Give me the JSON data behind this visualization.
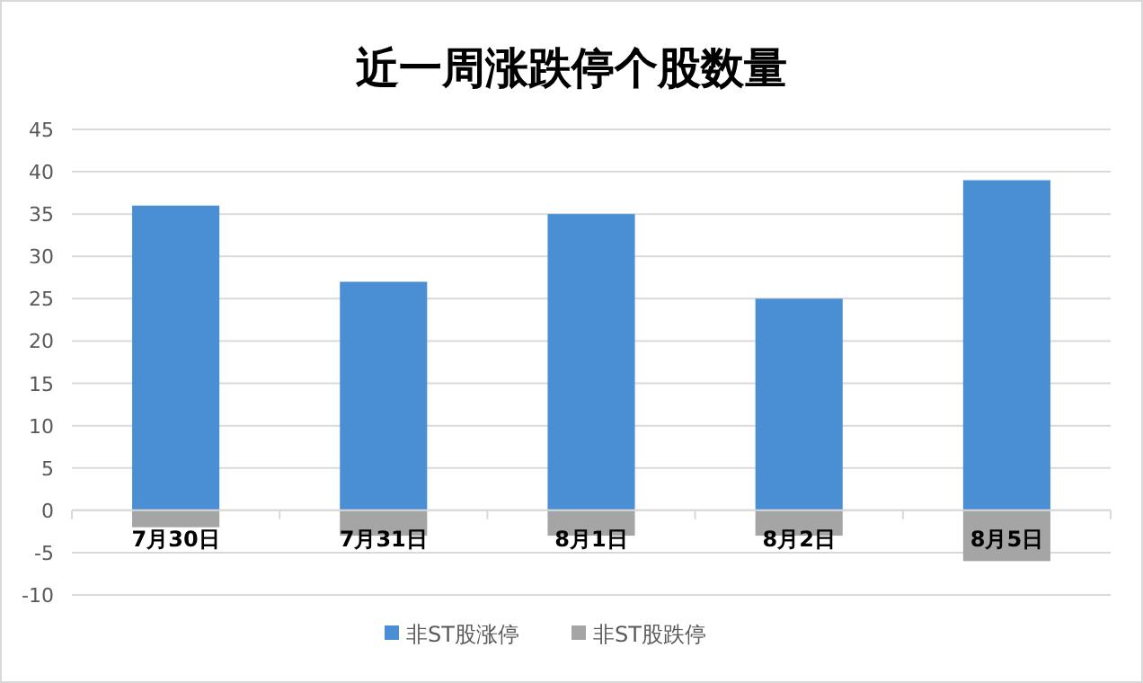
{
  "chart_data": {
    "type": "bar",
    "title": "近一周涨跌停个股数量",
    "categories": [
      "7月30日",
      "7月31日",
      "8月1日",
      "8月2日",
      "8月5日"
    ],
    "stacked": true,
    "series": [
      {
        "name": "非ST股涨停",
        "color": "#4a8fd4",
        "values": [
          36,
          27,
          35,
          25,
          39
        ]
      },
      {
        "name": "非ST股跌停",
        "color": "#a5a5a5",
        "values": [
          -2,
          -3,
          -3,
          -3,
          -6
        ]
      }
    ],
    "ylim": [
      -10,
      45
    ],
    "yticks": [
      -10,
      -5,
      0,
      5,
      10,
      15,
      20,
      25,
      30,
      35,
      40,
      45
    ],
    "grid": "y",
    "legend": "bottom"
  }
}
